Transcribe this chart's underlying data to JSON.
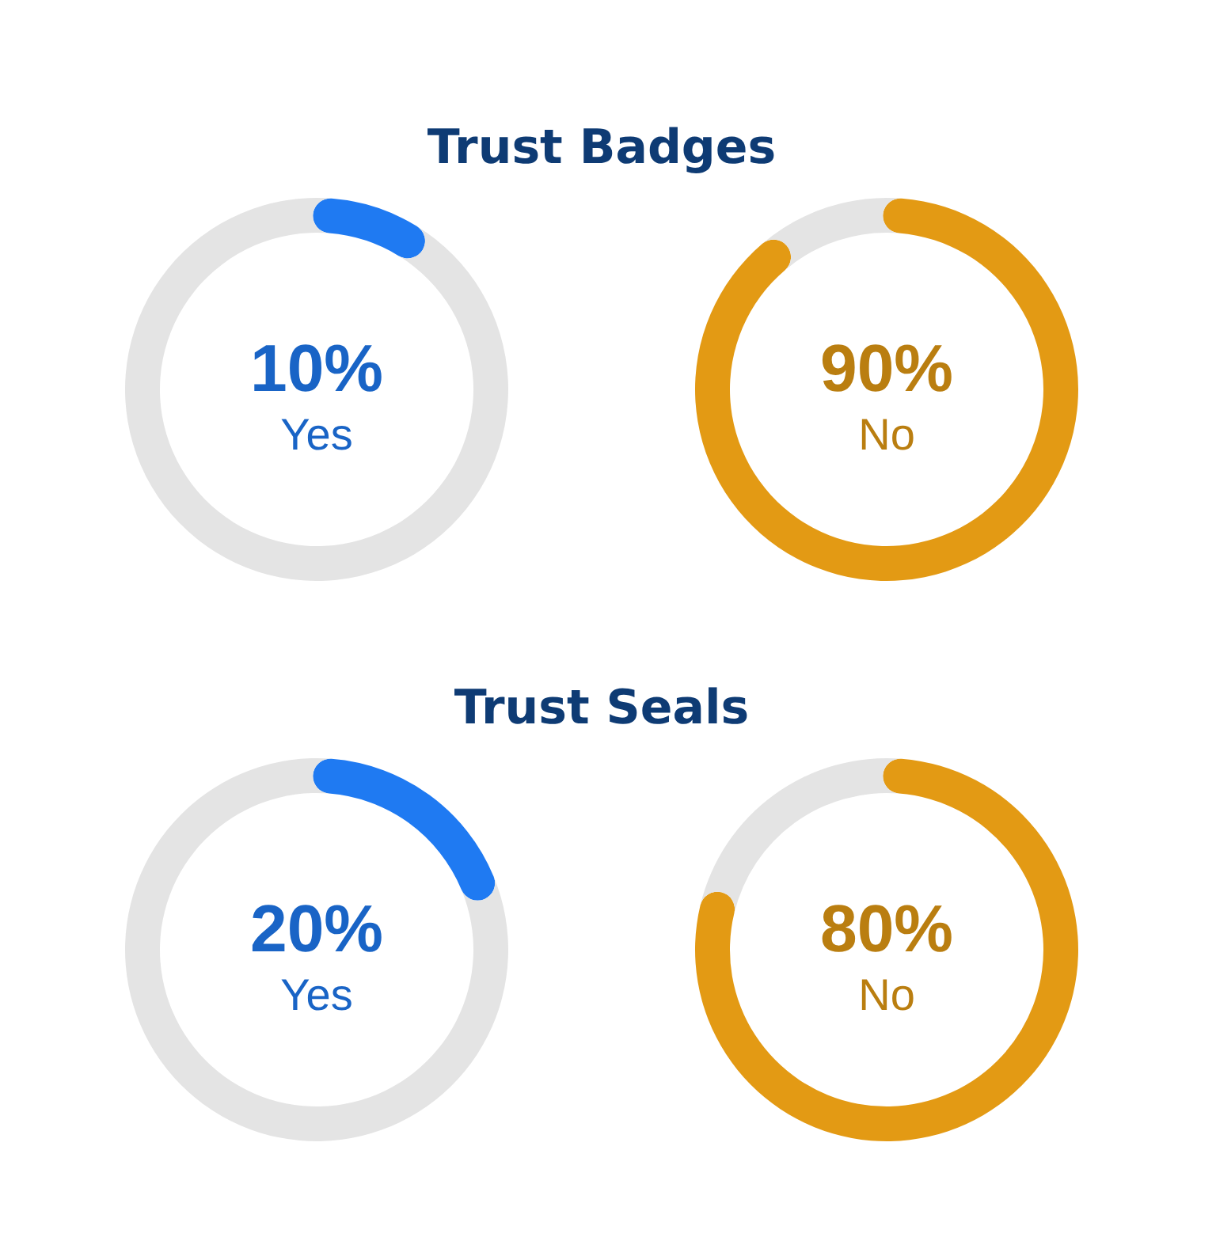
{
  "chart_data": [
    {
      "type": "donut",
      "title": "Trust Badges",
      "categories": [
        "Yes",
        null
      ],
      "values": [
        10,
        90
      ],
      "colors": [
        "#1f7af2",
        "#e4e4e4"
      ],
      "value_labels": [
        "10%",
        null
      ]
    },
    {
      "type": "donut",
      "categories": [
        "No",
        null
      ],
      "values": [
        90,
        10
      ],
      "colors": [
        "#e39a14",
        "#e4e4e4"
      ],
      "value_labels": [
        "90%",
        null
      ]
    },
    {
      "type": "donut",
      "title": "Trust Seals",
      "categories": [
        "Yes",
        null
      ],
      "values": [
        20,
        80
      ],
      "colors": [
        "#1f7af2",
        "#e4e4e4"
      ],
      "value_labels": [
        "20%",
        null
      ]
    },
    {
      "type": "donut",
      "categories": [
        "No",
        null
      ],
      "values": [
        80,
        20
      ],
      "colors": [
        "#e39a14",
        "#e4e4e4"
      ],
      "value_labels": [
        "80%",
        null
      ]
    }
  ]
}
